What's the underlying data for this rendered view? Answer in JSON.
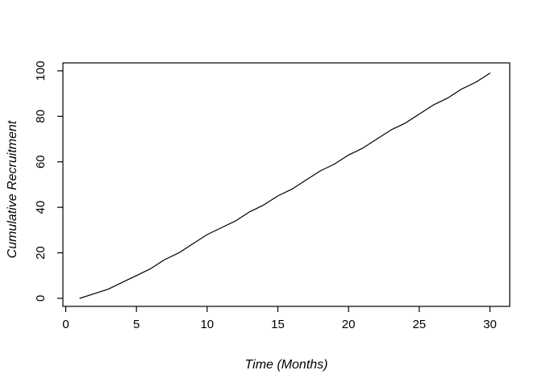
{
  "page": {
    "background": "#ffffff"
  },
  "chart_data": {
    "type": "line",
    "title": "",
    "xlabel": "Time (Months)",
    "ylabel": "Cumulative Recruitment",
    "x": [
      1,
      2,
      3,
      4,
      5,
      6,
      7,
      8,
      9,
      10,
      11,
      12,
      13,
      14,
      15,
      16,
      17,
      18,
      19,
      20,
      21,
      22,
      23,
      24,
      25,
      26,
      27,
      28,
      29,
      30
    ],
    "y": [
      0,
      2,
      4,
      7,
      10,
      13,
      17,
      20,
      24,
      28,
      31,
      34,
      38,
      41,
      45,
      48,
      52,
      56,
      59,
      63,
      66,
      70,
      74,
      77,
      81,
      85,
      88,
      92,
      95,
      99
    ],
    "xticks": {
      "values": [
        0,
        5,
        10,
        15,
        20,
        25,
        30
      ],
      "labels": [
        "0",
        "5",
        "10",
        "15",
        "20",
        "25",
        "30"
      ]
    },
    "yticks": {
      "values": [
        0,
        20,
        40,
        60,
        80,
        100
      ],
      "labels": [
        "0",
        "20",
        "40",
        "60",
        "80",
        "100"
      ]
    },
    "xlim": [
      -0.2,
      31.4
    ],
    "ylim": [
      -3.55,
      103.5
    ],
    "line_color": "#000000",
    "axis_color": "#000000",
    "background_color": "#ffffff",
    "grid": false,
    "legend": null
  }
}
